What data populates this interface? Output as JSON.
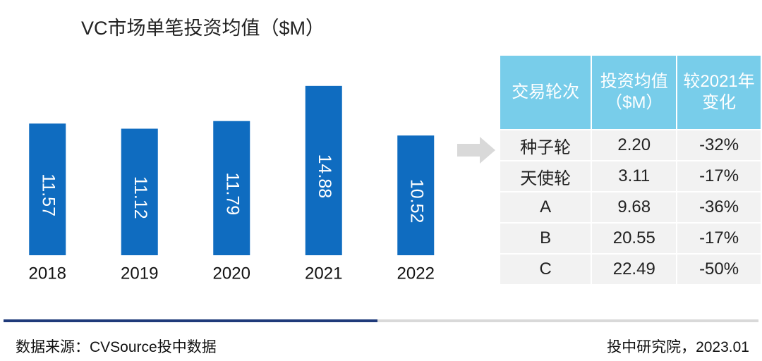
{
  "chart_data": {
    "type": "bar",
    "title": "VC市场单笔投资均值（$M）",
    "categories": [
      "2018",
      "2019",
      "2020",
      "2021",
      "2022"
    ],
    "values": [
      11.57,
      11.12,
      11.79,
      14.88,
      10.52
    ],
    "color": "#0f6cc0"
  },
  "table": {
    "header": [
      "交易轮次",
      "投资均值（$M）",
      "较2021年变化"
    ],
    "rows": [
      [
        "种子轮",
        "2.20",
        "-32%"
      ],
      [
        "天使轮",
        "3.11",
        "-17%"
      ],
      [
        "A",
        "9.68",
        "-36%"
      ],
      [
        "B",
        "20.55",
        "-17%"
      ],
      [
        "C",
        "22.49",
        "-50%"
      ]
    ]
  },
  "footer": {
    "source": "数据来源：CVSource投中数据",
    "credit": "投中研究院，2023.01"
  }
}
